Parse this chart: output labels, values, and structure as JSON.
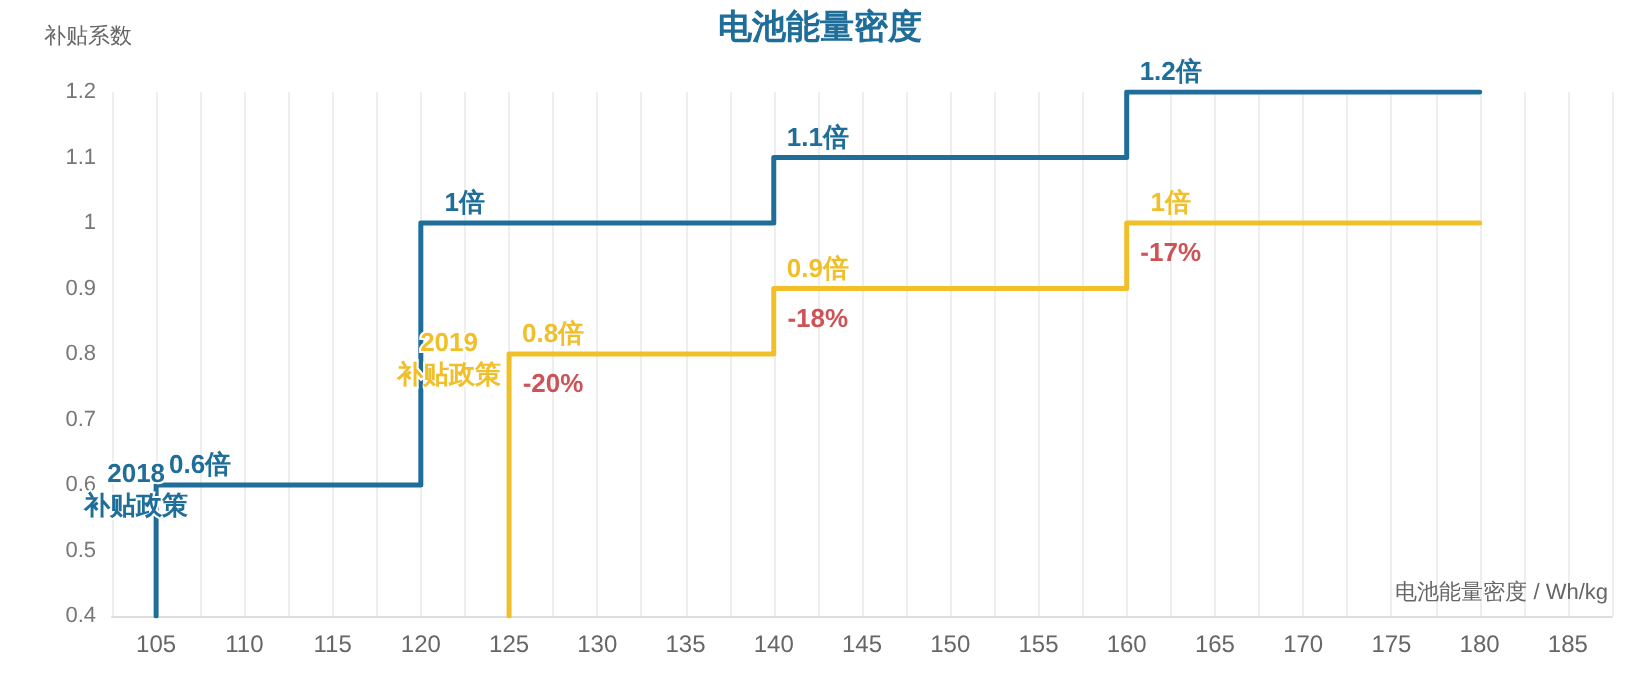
{
  "chart_data": {
    "type": "step",
    "title": "电池能量密度",
    "ylabel": "补贴系数",
    "xlabel": "电池能量密度 / Wh/kg",
    "xlim": [
      102.5,
      187.5
    ],
    "xticks": [
      {
        "value": 102.5,
        "label": null
      },
      105,
      {
        "value": 107.5,
        "label": null
      },
      110,
      {
        "value": 112.5,
        "label": null
      },
      115,
      {
        "value": 117.5,
        "label": null
      },
      120,
      {
        "value": 122.5,
        "label": null
      },
      125,
      {
        "value": 127.5,
        "label": null
      },
      130,
      {
        "value": 132.5,
        "label": null
      },
      135,
      {
        "value": 137.5,
        "label": null
      },
      140,
      {
        "value": 142.5,
        "label": null
      },
      145,
      {
        "value": 147.5,
        "label": null
      },
      150,
      {
        "value": 152.5,
        "label": null
      },
      155,
      {
        "value": 157.5,
        "label": null
      },
      160,
      {
        "value": 162.5,
        "label": null
      },
      165,
      {
        "value": 167.5,
        "label": null
      },
      170,
      {
        "value": 172.5,
        "label": null
      },
      175,
      {
        "value": 177.5,
        "label": null
      },
      180,
      {
        "value": 182.5,
        "label": null
      },
      185,
      {
        "value": 187.5,
        "label": null
      }
    ],
    "ylim": [
      0.4,
      1.2
    ],
    "yticks": [
      0.4,
      0.5,
      0.6,
      0.7,
      0.8,
      0.9,
      1,
      1.1,
      1.2
    ],
    "grid": "x",
    "legend": false,
    "marker": "none",
    "line_style": "solid",
    "series": [
      {
        "name": "2018 补贴政策",
        "color": "#1f6e9a",
        "x": [
          105,
          105,
          120,
          140,
          160,
          180
        ],
        "values": [
          0.4,
          0.6,
          1,
          1.1,
          1.2,
          1.2
        ],
        "value_labels": [
          null,
          "0.6倍",
          "1倍",
          "1.1倍",
          "1.2倍",
          null
        ]
      },
      {
        "name": "2019 补贴政策",
        "color": "#f0bf2a",
        "x": [
          125,
          125,
          140,
          160,
          180
        ],
        "values": [
          0.4,
          0.8,
          0.9,
          1,
          1
        ],
        "value_labels": [
          null,
          "0.8倍",
          "0.9倍",
          "1倍",
          null
        ]
      }
    ],
    "annotations": [
      {
        "text": "-20%",
        "x": 125,
        "y": 0.8
      },
      {
        "text": "-18%",
        "x": 140,
        "y": 0.9
      },
      {
        "text": "-17%",
        "x": 160,
        "y": 1
      }
    ]
  }
}
